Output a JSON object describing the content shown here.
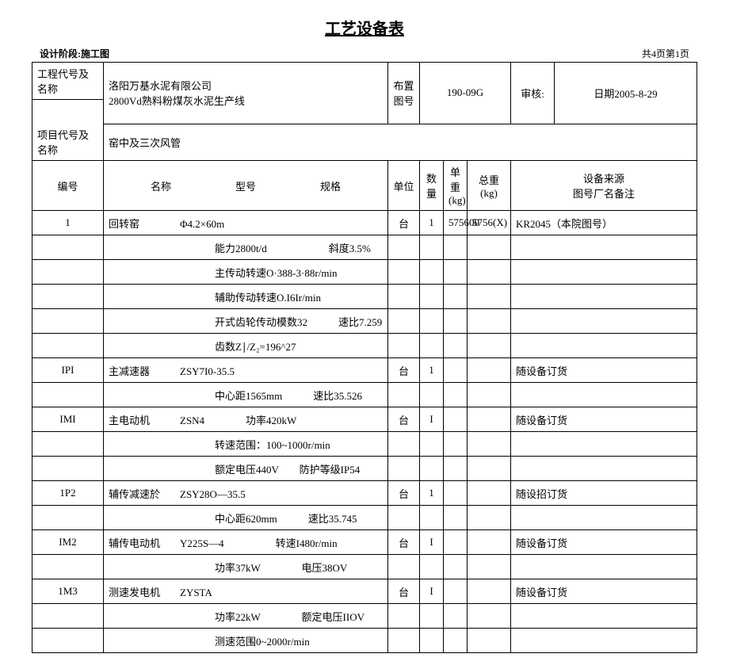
{
  "title": "工艺设备表",
  "meta": {
    "left": "设计阶段:施工图",
    "right": "共4页第1页"
  },
  "header": {
    "row1_label1": "工程代号及名称",
    "row1_val1a": "洛阳万基水泥有限公司",
    "row1_val1b": "2800Vd熟料粉煤灰水泥生产线",
    "row1_label2": "布置图号",
    "row1_val2": "190-09G",
    "row1_label3": "审核:",
    "row1_label4": "日期2005-8-29",
    "row2_label1": "项目代号及名称",
    "row2_val1": "窑中及三次风管"
  },
  "cols": {
    "c1": "编号",
    "c2a": "名称",
    "c2b": "型号",
    "c2c": "规格",
    "c3": "单位",
    "c4": "数量",
    "c5": "单重(kg)",
    "c6": "总重(kg)",
    "c7a": "设备来源",
    "c7b": "图号厂名备注"
  },
  "rows": [
    {
      "no": "1",
      "name": "回转窑",
      "spec": "Φ4.2×60m",
      "unit": "台",
      "qty": "1",
      "uw": "575600",
      "tw": "5756(X)",
      "src": "KR2045（本院图号）"
    },
    {
      "spec_only": "能力2800t/d　　　　　　斜度3.5%"
    },
    {
      "spec_only": "主传动转速O·388-3·88r/min"
    },
    {
      "spec_only": "辅助传动转速O.I6Ir/min"
    },
    {
      "spec_only": "开式齿轮传动模数32　　　速比7.259"
    },
    {
      "spec_only": "齿数Z∣/Z₂=196^27"
    },
    {
      "no": "IPI",
      "name": "主减速器",
      "spec": "ZSY7I0-35.5",
      "unit": "台",
      "qty": "1",
      "uw": "",
      "tw": "",
      "src": "随设备订货"
    },
    {
      "spec_only": "中心距1565mm　　　速比35.526"
    },
    {
      "no": "IMI",
      "name": "主电动机",
      "spec": "ZSN4　　　　功率420kW",
      "unit": "台",
      "qty": "I",
      "uw": "",
      "tw": "",
      "src": "随设备订货"
    },
    {
      "spec_only": "转速范围：100~1000r/min"
    },
    {
      "spec_only": "额定电压440V　　防护等级IP54"
    },
    {
      "no": "1P2",
      "name": "辅传减速於",
      "spec": "ZSY28O—35.5",
      "unit": "台",
      "qty": "1",
      "uw": "",
      "tw": "",
      "src": "随设招订货"
    },
    {
      "spec_only": "中心距620mm　　　速比35.745"
    },
    {
      "no": "IM2",
      "name": "辅传电动机",
      "spec": "Y225S—4　　　　　转速I480r/min",
      "unit": "台",
      "qty": "I",
      "uw": "",
      "tw": "",
      "src": "随设备订货"
    },
    {
      "spec_only": "功率37kW　　　　电压38OV"
    },
    {
      "no": "1M3",
      "name": "测速发电机",
      "spec": "ZYSTA",
      "unit": "台",
      "qty": "I",
      "uw": "",
      "tw": "",
      "src": "随设备订货"
    },
    {
      "spec_only": "功率22kW　　　　额定电压IIOV"
    },
    {
      "spec_only": "测速范围0~2000r/min"
    }
  ]
}
